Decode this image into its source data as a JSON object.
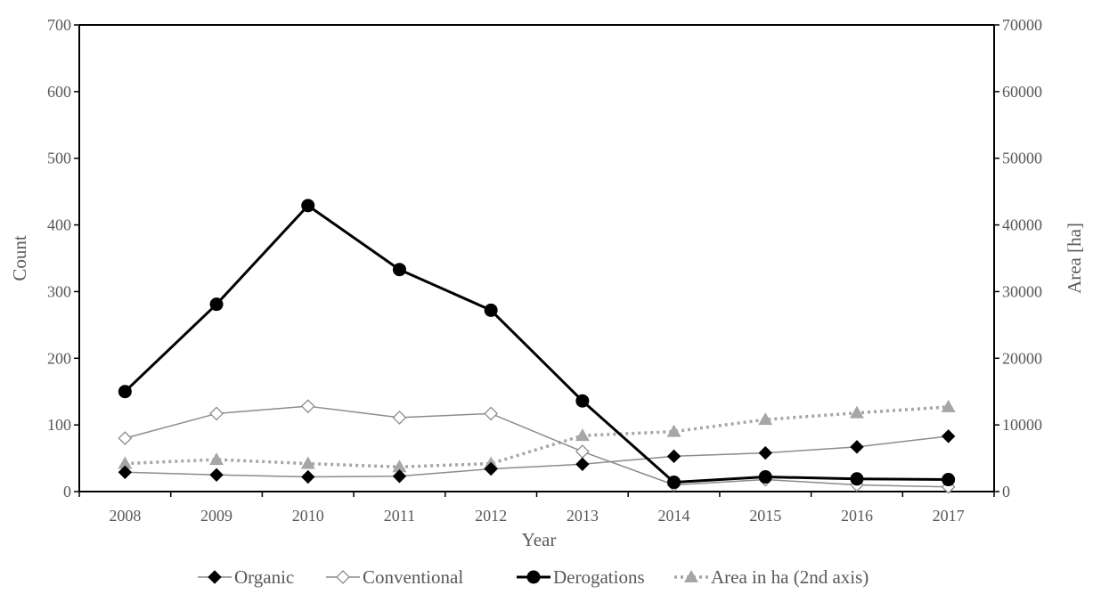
{
  "chart_data": {
    "type": "line",
    "x": [
      "2008",
      "2009",
      "2010",
      "2011",
      "2012",
      "2013",
      "2014",
      "2015",
      "2016",
      "2017"
    ],
    "xlabel": "Year",
    "ylabel": "Count",
    "y2label": "Area [ha]",
    "ylim": [
      0,
      700
    ],
    "y2lim": [
      0,
      70000
    ],
    "yticks": [
      0,
      100,
      200,
      300,
      400,
      500,
      600,
      700
    ],
    "y2ticks": [
      0,
      10000,
      20000,
      30000,
      40000,
      50000,
      60000,
      70000
    ],
    "grid": false,
    "legend_position": "bottom",
    "series": [
      {
        "name": "Organic",
        "axis": "left",
        "color": "#8c8c8c",
        "marker": "diamond-filled",
        "values": [
          29,
          25,
          22,
          23,
          34,
          41,
          53,
          58,
          67,
          83
        ]
      },
      {
        "name": "Conventional",
        "axis": "left",
        "color": "#8c8c8c",
        "marker": "diamond-open",
        "values": [
          80,
          117,
          128,
          111,
          117,
          60,
          10,
          18,
          10,
          7
        ]
      },
      {
        "name": "Derogations",
        "axis": "left",
        "color": "#000000",
        "marker": "circle",
        "values": [
          150,
          281,
          429,
          333,
          272,
          136,
          14,
          22,
          19,
          18
        ]
      },
      {
        "name": "Area in ha (2nd axis)",
        "axis": "right",
        "color": "#a6a6a6",
        "marker": "triangle",
        "values": [
          4200,
          4800,
          4200,
          3700,
          4200,
          8400,
          9000,
          10800,
          11800,
          12700
        ]
      }
    ]
  }
}
